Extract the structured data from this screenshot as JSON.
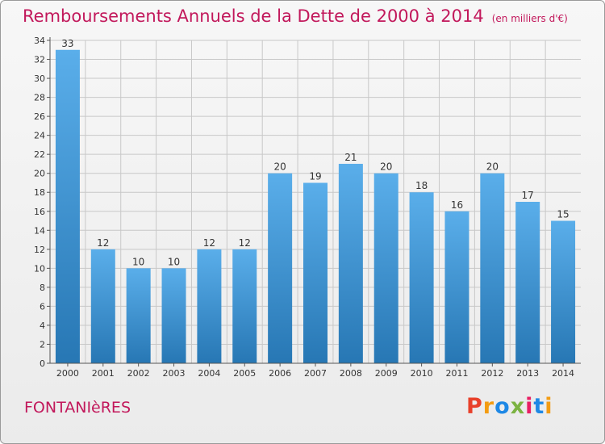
{
  "header": {
    "title": "Remboursements Annuels de la Dette de 2000 à 2014",
    "unit": "(en milliers d'€)"
  },
  "footer": {
    "city": "FONTANIèRES",
    "logo": "Proxiti"
  },
  "colors": {
    "title": "#c2185b",
    "bar_top": "#5aaeea",
    "bar_bottom": "#2777b4",
    "grid": "#c8c8c8",
    "logo_letters": [
      "#e8402a",
      "#f39c12",
      "#1e88e5",
      "#7cb342",
      "#e91e63",
      "#1e88e5",
      "#f39c12"
    ]
  },
  "chart_data": {
    "type": "bar",
    "title": "Remboursements Annuels de la Dette de 2000 à 2014",
    "xlabel": "",
    "ylabel": "",
    "categories": [
      "2000",
      "2001",
      "2002",
      "2003",
      "2004",
      "2005",
      "2006",
      "2007",
      "2008",
      "2009",
      "2010",
      "2011",
      "2012",
      "2013",
      "2014"
    ],
    "values": [
      33,
      12,
      10,
      10,
      12,
      12,
      20,
      19,
      21,
      20,
      18,
      16,
      20,
      17,
      15
    ],
    "ylim": [
      0,
      34
    ],
    "yticks": [
      0,
      2,
      4,
      6,
      8,
      10,
      12,
      14,
      16,
      18,
      20,
      22,
      24,
      26,
      28,
      30,
      32,
      34
    ],
    "grid": true,
    "legend": "none"
  }
}
